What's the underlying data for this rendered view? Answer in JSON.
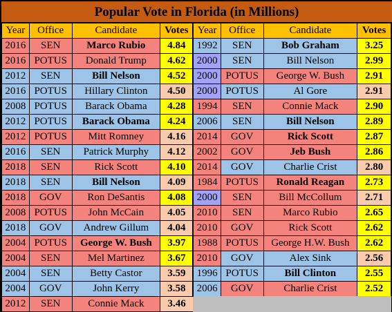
{
  "title": "Popular Vote in Florida (in Millions)",
  "headers": [
    "Year",
    "Office",
    "Candidate",
    "Votes"
  ],
  "left_rows": [
    {
      "year": "2016",
      "office": "SEN",
      "candidate": "Marco Rubio",
      "votes": "4.84",
      "party": "R",
      "bold": true,
      "votes_color": "yellow"
    },
    {
      "year": "2016",
      "office": "POTUS",
      "candidate": "Donald Trump",
      "votes": "4.62",
      "party": "R",
      "bold": false,
      "votes_color": "yellow"
    },
    {
      "year": "2012",
      "office": "SEN",
      "candidate": "Bill Nelson",
      "votes": "4.52",
      "party": "D",
      "bold": true,
      "votes_color": "yellow"
    },
    {
      "year": "2016",
      "office": "POTUS",
      "candidate": "Hillary Clinton",
      "votes": "4.50",
      "party": "D",
      "bold": false,
      "votes_color": "peach"
    },
    {
      "year": "2008",
      "office": "POTUS",
      "candidate": "Barack Obama",
      "votes": "4.28",
      "party": "D",
      "bold": false,
      "votes_color": "yellow"
    },
    {
      "year": "2012",
      "office": "POTUS",
      "candidate": "Barack Obama",
      "votes": "4.24",
      "party": "D",
      "bold": true,
      "votes_color": "yellow"
    },
    {
      "year": "2012",
      "office": "POTUS",
      "candidate": "Mitt Romney",
      "votes": "4.16",
      "party": "R",
      "bold": false,
      "votes_color": "peach"
    },
    {
      "year": "2016",
      "office": "SEN",
      "candidate": "Patrick Murphy",
      "votes": "4.12",
      "party": "D",
      "bold": false,
      "votes_color": "peach"
    },
    {
      "year": "2018",
      "office": "SEN",
      "candidate": "Rick Scott",
      "votes": "4.10",
      "party": "R",
      "bold": false,
      "votes_color": "yellow"
    },
    {
      "year": "2018",
      "office": "SEN",
      "candidate": "Bill Nelson",
      "votes": "4.09",
      "party": "D",
      "bold": true,
      "votes_color": "peach"
    },
    {
      "year": "2018",
      "office": "GOV",
      "candidate": "Ron DeSantis",
      "votes": "4.08",
      "party": "R",
      "bold": false,
      "votes_color": "yellow"
    },
    {
      "year": "2008",
      "office": "POTUS",
      "candidate": "John McCain",
      "votes": "4.05",
      "party": "R",
      "bold": false,
      "votes_color": "peach"
    },
    {
      "year": "2018",
      "office": "GOV",
      "candidate": "Andrew Gillum",
      "votes": "4.04",
      "party": "D",
      "bold": false,
      "votes_color": "peach"
    },
    {
      "year": "2004",
      "office": "POTUS",
      "candidate": "George W. Bush",
      "votes": "3.97",
      "party": "R",
      "bold": true,
      "votes_color": "yellow"
    },
    {
      "year": "2004",
      "office": "SEN",
      "candidate": "Mel Martinez",
      "votes": "3.67",
      "party": "R",
      "bold": false,
      "votes_color": "yellow"
    },
    {
      "year": "2004",
      "office": "SEN",
      "candidate": "Betty Castor",
      "votes": "3.59",
      "party": "D",
      "bold": false,
      "votes_color": "peach"
    },
    {
      "year": "2004",
      "office": "GOV",
      "candidate": "John Kerry",
      "votes": "3.58",
      "party": "D",
      "bold": false,
      "votes_color": "peach"
    },
    {
      "year": "2012",
      "office": "SEN",
      "candidate": "Connie Mack",
      "votes": "3.46",
      "party": "R",
      "bold": false,
      "votes_color": "peach"
    }
  ],
  "right_rows": [
    {
      "year": "1992",
      "office": "SEN",
      "candidate": "Bob Graham",
      "votes": "3.25",
      "party": "D",
      "bold": true,
      "votes_color": "yellow",
      "year_color": "blue"
    },
    {
      "year": "2000",
      "office": "SEN",
      "candidate": "Bill Nelson",
      "votes": "2.99",
      "party": "D",
      "bold": false,
      "votes_color": "yellow",
      "year_color": "lavender"
    },
    {
      "year": "2000",
      "office": "POTUS",
      "candidate": "George W. Bush",
      "votes": "2.91",
      "party": "R",
      "bold": false,
      "votes_color": "yellow",
      "year_color": "lavender"
    },
    {
      "year": "2000",
      "office": "POTUS",
      "candidate": "Al Gore",
      "votes": "2.91",
      "party": "D",
      "bold": false,
      "votes_color": "peach",
      "year_color": "lavender"
    },
    {
      "year": "1994",
      "office": "SEN",
      "candidate": "Connie Mack",
      "votes": "2.90",
      "party": "R",
      "bold": false,
      "votes_color": "yellow",
      "year_color": "red"
    },
    {
      "year": "2006",
      "office": "SEN",
      "candidate": "Bill Nelson",
      "votes": "2.89",
      "party": "D",
      "bold": true,
      "votes_color": "yellow",
      "year_color": "blue"
    },
    {
      "year": "2014",
      "office": "GOV",
      "candidate": "Rick Scott",
      "votes": "2.87",
      "party": "R",
      "bold": true,
      "votes_color": "yellow",
      "year_color": "red"
    },
    {
      "year": "2002",
      "office": "GOV",
      "candidate": "Jeb Bush",
      "votes": "2.86",
      "party": "R",
      "bold": true,
      "votes_color": "yellow",
      "year_color": "red"
    },
    {
      "year": "2014",
      "office": "GOV",
      "candidate": "Charlie Crist",
      "votes": "2.80",
      "party": "D",
      "bold": false,
      "votes_color": "peach",
      "year_color": "red"
    },
    {
      "year": "1984",
      "office": "POTUS",
      "candidate": "Ronald Reagan",
      "votes": "2.73",
      "party": "R",
      "bold": true,
      "votes_color": "yellow",
      "year_color": "red"
    },
    {
      "year": "2000",
      "office": "SEN",
      "candidate": "Bill McCollum",
      "votes": "2.71",
      "party": "R",
      "bold": false,
      "votes_color": "peach",
      "year_color": "lavender"
    },
    {
      "year": "2010",
      "office": "SEN",
      "candidate": "Marco Rubio",
      "votes": "2.65",
      "party": "R",
      "bold": false,
      "votes_color": "yellow",
      "year_color": "red"
    },
    {
      "year": "2010",
      "office": "GOV",
      "candidate": "Rick Scott",
      "votes": "2.62",
      "party": "R",
      "bold": false,
      "votes_color": "yellow",
      "year_color": "red"
    },
    {
      "year": "1988",
      "office": "POTUS",
      "candidate": "George H.W. Bush",
      "votes": "2.62",
      "party": "R",
      "bold": false,
      "votes_color": "yellow",
      "year_color": "red"
    },
    {
      "year": "2010",
      "office": "GOV",
      "candidate": "Alex Sink",
      "votes": "2.56",
      "party": "D",
      "bold": false,
      "votes_color": "peach",
      "year_color": "red"
    },
    {
      "year": "1996",
      "office": "POTUS",
      "candidate": "Bill Clinton",
      "votes": "2.55",
      "party": "D",
      "bold": true,
      "votes_color": "yellow",
      "year_color": "blue"
    },
    {
      "year": "2006",
      "office": "GOV",
      "candidate": "Charlie Crist",
      "votes": "2.52",
      "party": "R",
      "bold": false,
      "votes_color": "yellow",
      "year_color": "blue"
    }
  ],
  "colors": {
    "title_bg": "#c55a11",
    "header_bg": "#ffc000",
    "republican": "#f4837d",
    "democrat": "#9dc3e6",
    "year_2000": "#a3a3f5",
    "votes_yellow": "#ffff00",
    "votes_peach": "#f8cbad",
    "empty": "#bfbfbf"
  }
}
